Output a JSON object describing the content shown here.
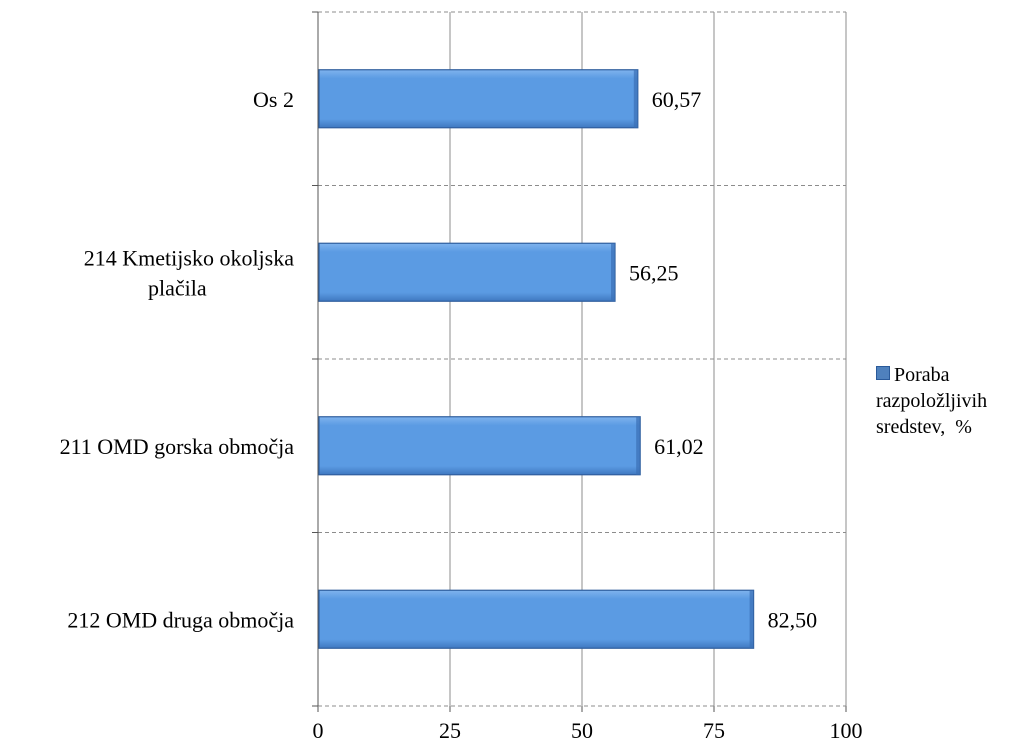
{
  "chart_data": {
    "type": "bar",
    "orientation": "horizontal",
    "categories": [
      "Os 2",
      "214 Kmetijsko okoljska",
      "211 OMD gorska območja",
      "212 OMD druga območja"
    ],
    "category_lines": [
      [
        "Os 2"
      ],
      [
        "214 Kmetijsko okoljska",
        "plačila"
      ],
      [
        "211 OMD gorska območja"
      ],
      [
        "212 OMD druga območja"
      ]
    ],
    "series": [
      {
        "name": "Poraba razpoložljivih sredstev, %",
        "values": [
          60.57,
          56.25,
          61.02,
          82.5
        ]
      }
    ],
    "data_labels": [
      "60,57",
      "56,25",
      "61,02",
      "82,50"
    ],
    "xlim": [
      0,
      100
    ],
    "xticks": [
      "0",
      "25",
      "50",
      "75",
      "100"
    ],
    "grid": true,
    "legend_position": "right",
    "colors": {
      "bar": "#5b9be3",
      "bar_edge": "#2f5f9e",
      "grid": "#8c8c8c"
    }
  },
  "legend": {
    "lines": [
      "Poraba",
      "razpoložljivih",
      "sredstev,  %"
    ]
  }
}
